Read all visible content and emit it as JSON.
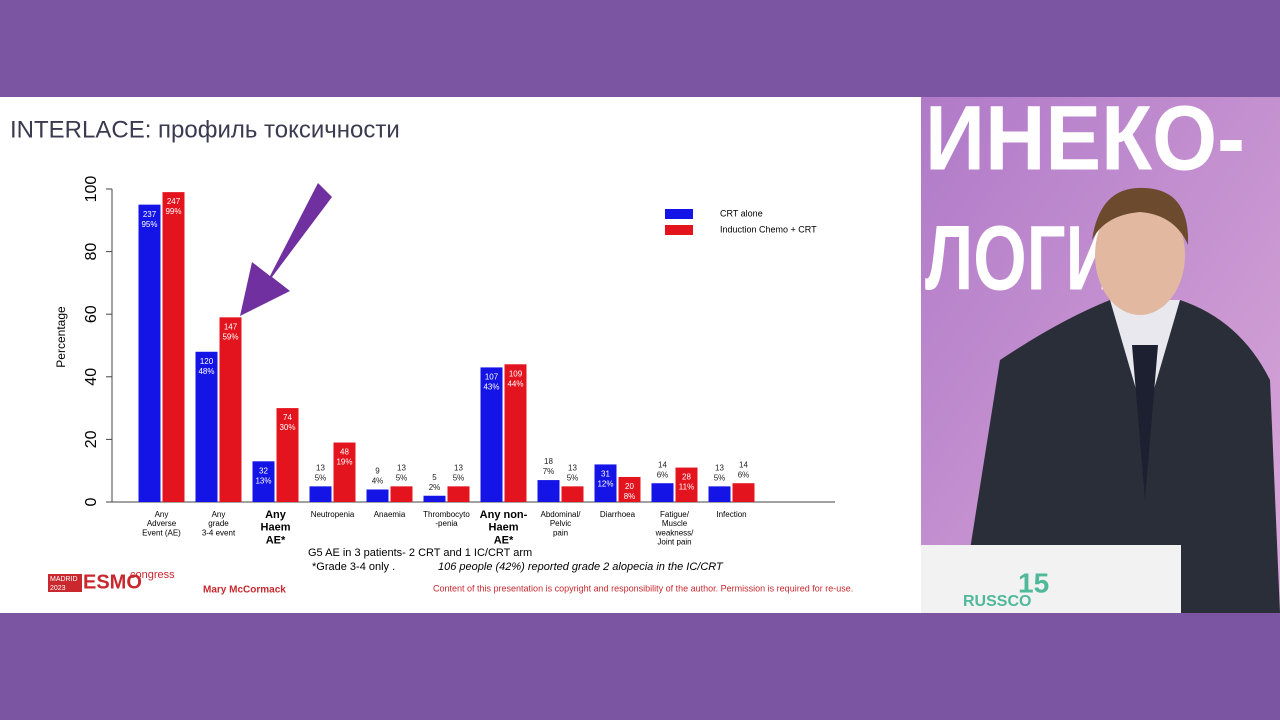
{
  "slide": {
    "title": "INTERLACE: профиль токсичности",
    "notes": [
      "G5 AE in 3 patients- 2 CRT and 1 IC/CRT arm",
      "*Grade 3-4 only .",
      "106 people (42%) reported grade 2 alopecia in the IC/CRT"
    ],
    "logo": {
      "city": "MADRID",
      "year": "2023",
      "brand": "ESMO",
      "word": "congress"
    },
    "author": "Mary McCormack",
    "copyright": "Content of this presentation is copyright and responsibility of the author. Permission is required for re-use."
  },
  "backdrop": {
    "lines": [
      "ИНЕКО-",
      "ЛОГИ"
    ],
    "podium": "RUSSCO",
    "anniversary": "15"
  },
  "chart_data": {
    "type": "bar",
    "ylabel": "Percentage",
    "categories": [
      "Any\nAdverse\nEvent (AE)",
      "Any\ngrade\n3-4 event",
      "Any\nHaem\nAE*",
      "Neutropenia",
      "Anaemia",
      "Thrombocyto\n-penia",
      "Any non-\nHaem\nAE*",
      "Abdominal/\nPelvic\npain",
      "Diarrhoea",
      "Fatigue/\nMuscle\nweakness/\nJoint pain",
      "Infection"
    ],
    "series": [
      {
        "name": "CRT alone",
        "color": "#1414e6",
        "values": [
          95,
          48,
          13,
          5,
          4,
          2,
          43,
          7,
          12,
          6,
          5
        ],
        "value_labels": [
          "95%",
          "48%",
          "13%",
          "5%",
          "4%",
          "2%",
          "43%",
          "7%",
          "12%",
          "6%",
          "5%"
        ],
        "n": [
          237,
          120,
          32,
          13,
          9,
          5,
          107,
          18,
          31,
          14,
          13
        ]
      },
      {
        "name": "Induction Chemo + CRT",
        "color": "#e4141e",
        "values": [
          99,
          59,
          30,
          19,
          5,
          5,
          44,
          5,
          8,
          11,
          6
        ],
        "value_labels": [
          "99%",
          "59%",
          "30%",
          "19%",
          "5%",
          "5%",
          "44%",
          "5%",
          "8%",
          "11%",
          "6%"
        ],
        "n": [
          247,
          147,
          74,
          48,
          13,
          13,
          109,
          13,
          20,
          28,
          14
        ]
      }
    ],
    "ylim": [
      0,
      100
    ],
    "yticks": [
      0,
      20,
      40,
      60,
      80,
      100
    ],
    "grid": false,
    "legend": "top-right"
  }
}
